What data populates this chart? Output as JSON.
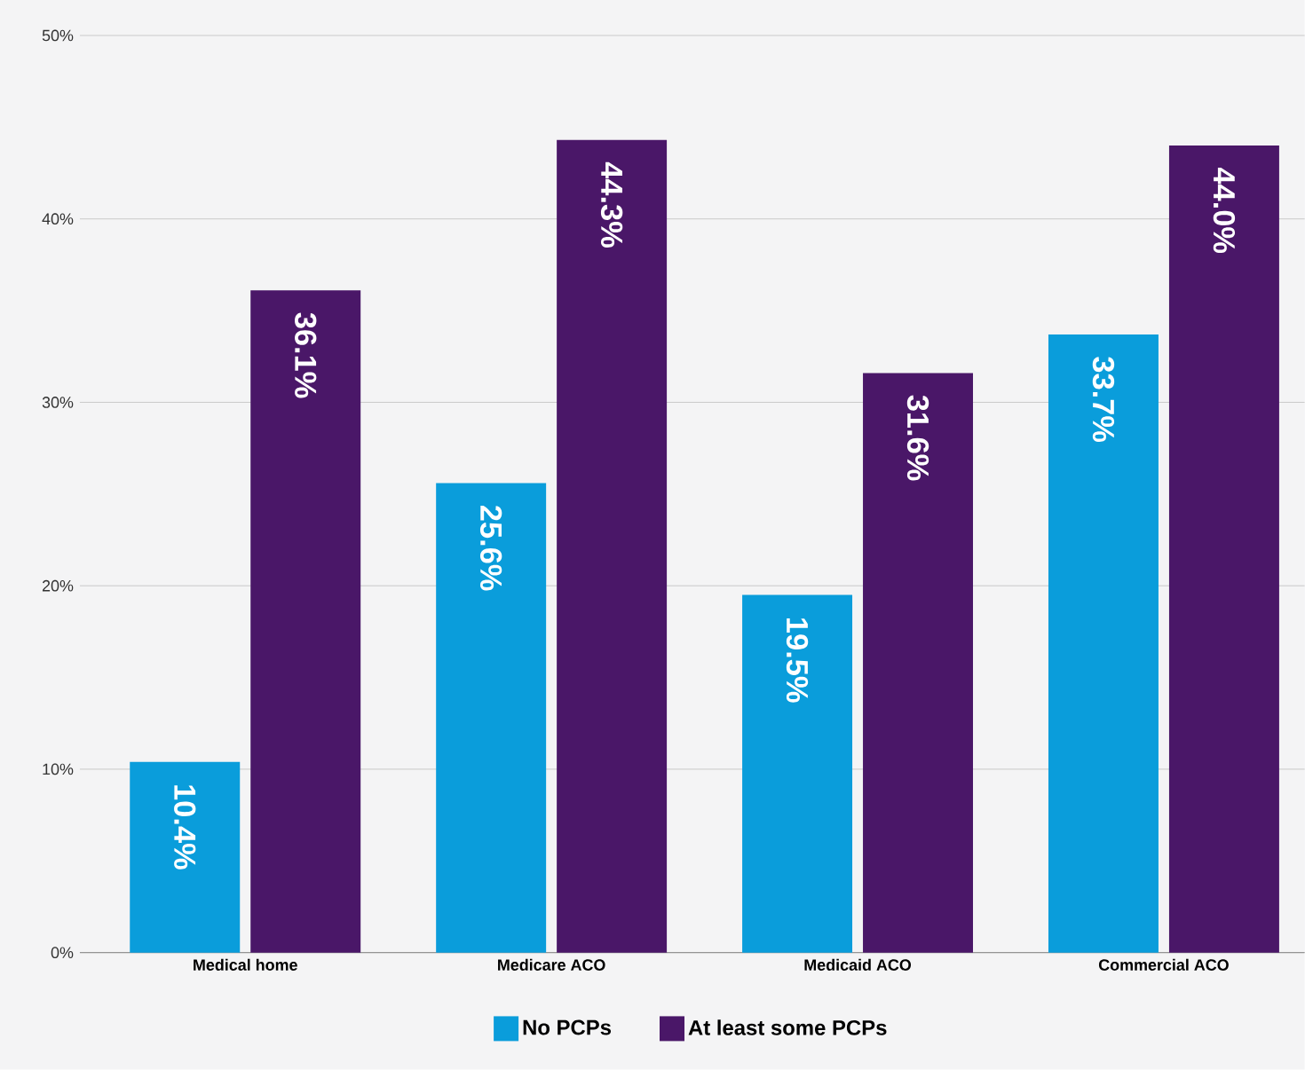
{
  "chart_data": {
    "type": "bar",
    "categories": [
      "Medical home",
      "Medicare ACO",
      "Medicaid ACO",
      "Commercial ACO"
    ],
    "series": [
      {
        "name": "No PCPs",
        "color": "#0a9ddb",
        "values": [
          10.4,
          25.6,
          19.5,
          33.7
        ],
        "value_labels": [
          "10.4%",
          "25.6%",
          "19.5%",
          "33.7%"
        ]
      },
      {
        "name": "At least some PCPs",
        "color": "#4a1768",
        "values": [
          36.1,
          44.3,
          31.6,
          44.0
        ],
        "value_labels": [
          "36.1%",
          "44.3%",
          "31.6%",
          "44.0%"
        ]
      }
    ],
    "ylim": [
      0,
      50
    ],
    "yticks": [
      {
        "value": 0,
        "label": "0%"
      },
      {
        "value": 10,
        "label": "10%"
      },
      {
        "value": 20,
        "label": "20%"
      },
      {
        "value": 30,
        "label": "30%"
      },
      {
        "value": 40,
        "label": "40%"
      },
      {
        "value": 50,
        "label": "50%"
      }
    ],
    "grid": "y",
    "legend": "bottom"
  }
}
